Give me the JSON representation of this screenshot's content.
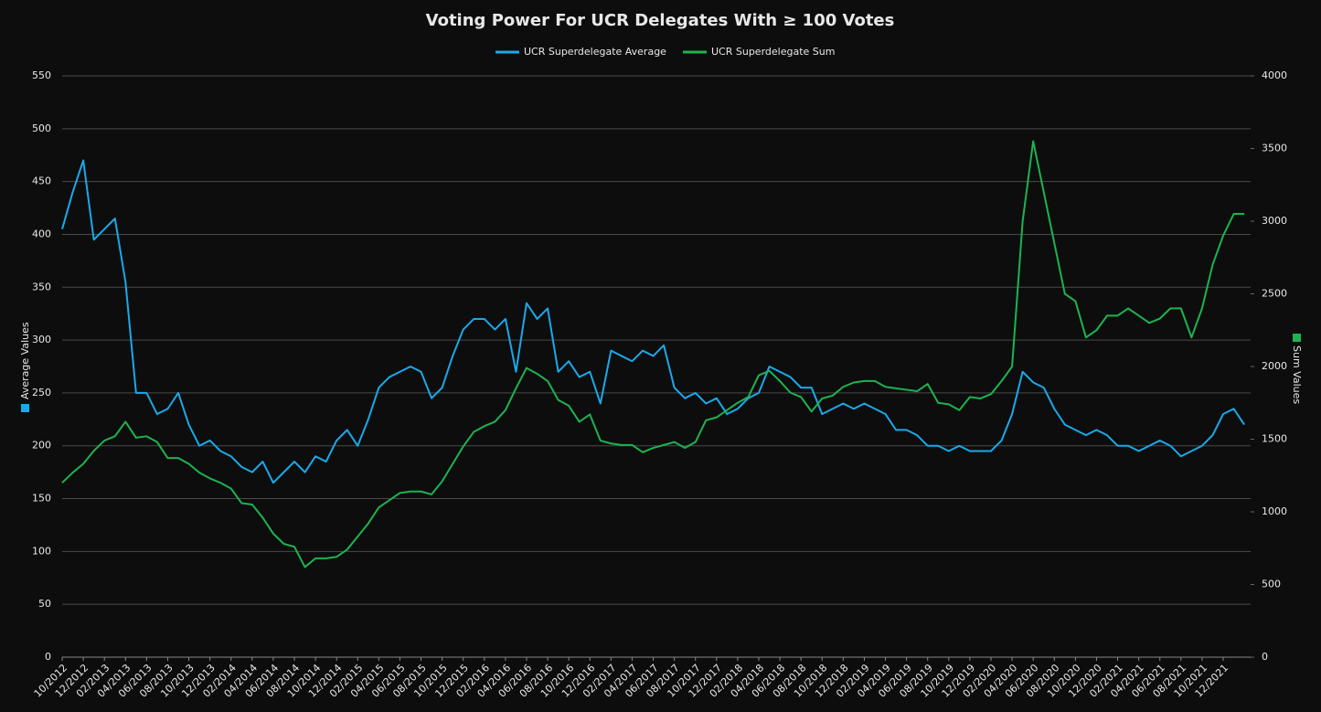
{
  "chart_data": {
    "type": "line",
    "title": "Voting Power For UCR Delegates With ≥ 100 Votes",
    "y_label": "Average Values",
    "y2_label": "Sum Values",
    "legend": "top",
    "grid": true,
    "x": [
      "10/2012",
      "11/2012",
      "12/2012",
      "01/2013",
      "02/2013",
      "03/2013",
      "04/2013",
      "05/2013",
      "06/2013",
      "07/2013",
      "08/2013",
      "09/2013",
      "10/2013",
      "11/2013",
      "12/2013",
      "01/2014",
      "02/2014",
      "03/2014",
      "04/2014",
      "05/2014",
      "06/2014",
      "07/2014",
      "08/2014",
      "09/2014",
      "10/2014",
      "11/2014",
      "12/2014",
      "01/2015",
      "02/2015",
      "03/2015",
      "04/2015",
      "05/2015",
      "06/2015",
      "07/2015",
      "08/2015",
      "09/2015",
      "10/2015",
      "11/2015",
      "12/2015",
      "01/2016",
      "02/2016",
      "03/2016",
      "04/2016",
      "05/2016",
      "06/2016",
      "07/2016",
      "08/2016",
      "09/2016",
      "10/2016",
      "11/2016",
      "12/2016",
      "01/2017",
      "02/2017",
      "03/2017",
      "04/2017",
      "05/2017",
      "06/2017",
      "07/2017",
      "08/2017",
      "09/2017",
      "10/2017",
      "11/2017",
      "12/2017",
      "01/2018",
      "02/2018",
      "03/2018",
      "04/2018",
      "05/2018",
      "06/2018",
      "07/2018",
      "08/2018",
      "09/2018",
      "10/2018",
      "11/2018",
      "12/2018",
      "01/2019",
      "02/2019",
      "03/2019",
      "04/2019",
      "05/2019",
      "06/2019",
      "07/2019",
      "08/2019",
      "09/2019",
      "10/2019",
      "11/2019",
      "12/2019",
      "01/2020",
      "02/2020",
      "03/2020",
      "04/2020",
      "05/2020",
      "06/2020",
      "07/2020",
      "08/2020",
      "09/2020",
      "10/2020",
      "11/2020",
      "12/2020",
      "01/2021",
      "02/2021",
      "03/2021",
      "04/2021",
      "05/2021",
      "06/2021",
      "07/2021",
      "08/2021",
      "09/2021",
      "10/2021",
      "11/2021",
      "12/2021",
      "01/2022",
      "02/2022"
    ],
    "xticks": [
      "10/2012",
      "12/2012",
      "02/2013",
      "04/2013",
      "06/2013",
      "08/2013",
      "10/2013",
      "12/2013",
      "02/2014",
      "04/2014",
      "06/2014",
      "08/2014",
      "10/2014",
      "12/2014",
      "02/2015",
      "04/2015",
      "06/2015",
      "08/2015",
      "10/2015",
      "12/2015",
      "02/2016",
      "04/2016",
      "06/2016",
      "08/2016",
      "10/2016",
      "12/2016",
      "02/2017",
      "04/2017",
      "06/2017",
      "08/2017",
      "10/2017",
      "12/2017",
      "02/2018",
      "04/2018",
      "06/2018",
      "08/2018",
      "10/2018",
      "12/2018",
      "02/2019",
      "04/2019",
      "06/2019",
      "08/2019",
      "10/2019",
      "12/2019",
      "02/2020",
      "04/2020",
      "06/2020",
      "08/2020",
      "10/2020",
      "12/2020",
      "02/2021",
      "04/2021",
      "06/2021",
      "08/2021",
      "10/2021",
      "12/2021"
    ],
    "ylim": [
      0,
      550
    ],
    "yticks": [
      0,
      50,
      100,
      150,
      200,
      250,
      300,
      350,
      400,
      450,
      500,
      550
    ],
    "y2lim": [
      0,
      4000
    ],
    "y2ticks": [
      0,
      500,
      1000,
      1500,
      2000,
      2500,
      3000,
      3500,
      4000
    ],
    "series": [
      {
        "name": "UCR Superdelegate Average",
        "color": "#1aa9ea",
        "axis": "y",
        "values": [
          405,
          440,
          470,
          395,
          405,
          415,
          355,
          250,
          250,
          230,
          235,
          250,
          220,
          200,
          205,
          195,
          190,
          180,
          175,
          185,
          165,
          175,
          185,
          175,
          190,
          185,
          205,
          215,
          200,
          225,
          255,
          265,
          270,
          275,
          270,
          245,
          255,
          285,
          310,
          320,
          320,
          310,
          320,
          270,
          335,
          320,
          330,
          270,
          280,
          265,
          270,
          240,
          290,
          285,
          280,
          290,
          285,
          295,
          255,
          245,
          250,
          240,
          245,
          230,
          235,
          245,
          250,
          275,
          270,
          265,
          255,
          255,
          230,
          235,
          240,
          235,
          240,
          235,
          230,
          215,
          215,
          210,
          200,
          200,
          195,
          200,
          195,
          195,
          195,
          205,
          230,
          270,
          260,
          255,
          235,
          220,
          215,
          210,
          215,
          210,
          200,
          200,
          195,
          200,
          205,
          200,
          190,
          195,
          200,
          210,
          230,
          235,
          220
        ]
      },
      {
        "name": "UCR Superdelegate Sum",
        "color": "#1db350",
        "axis": "y2",
        "values": [
          1200,
          1270,
          1330,
          1420,
          1490,
          1520,
          1620,
          1510,
          1520,
          1480,
          1370,
          1370,
          1330,
          1270,
          1230,
          1200,
          1160,
          1060,
          1050,
          960,
          850,
          780,
          760,
          620,
          680,
          680,
          690,
          740,
          830,
          920,
          1030,
          1080,
          1130,
          1140,
          1140,
          1120,
          1210,
          1330,
          1450,
          1550,
          1590,
          1620,
          1700,
          1850,
          1990,
          1950,
          1900,
          1770,
          1730,
          1620,
          1670,
          1490,
          1470,
          1460,
          1460,
          1410,
          1440,
          1460,
          1480,
          1440,
          1480,
          1630,
          1650,
          1700,
          1750,
          1790,
          1940,
          1970,
          1900,
          1820,
          1790,
          1690,
          1780,
          1800,
          1860,
          1890,
          1900,
          1900,
          1860,
          1850,
          1840,
          1830,
          1880,
          1750,
          1740,
          1700,
          1790,
          1780,
          1810,
          1900,
          2000,
          3000,
          3550,
          3200,
          2850,
          2500,
          2450,
          2200,
          2250,
          2350,
          2350,
          2400,
          2350,
          2300,
          2330,
          2400,
          2400,
          2200,
          2400,
          2700,
          2900,
          3050,
          3050
        ]
      }
    ]
  }
}
